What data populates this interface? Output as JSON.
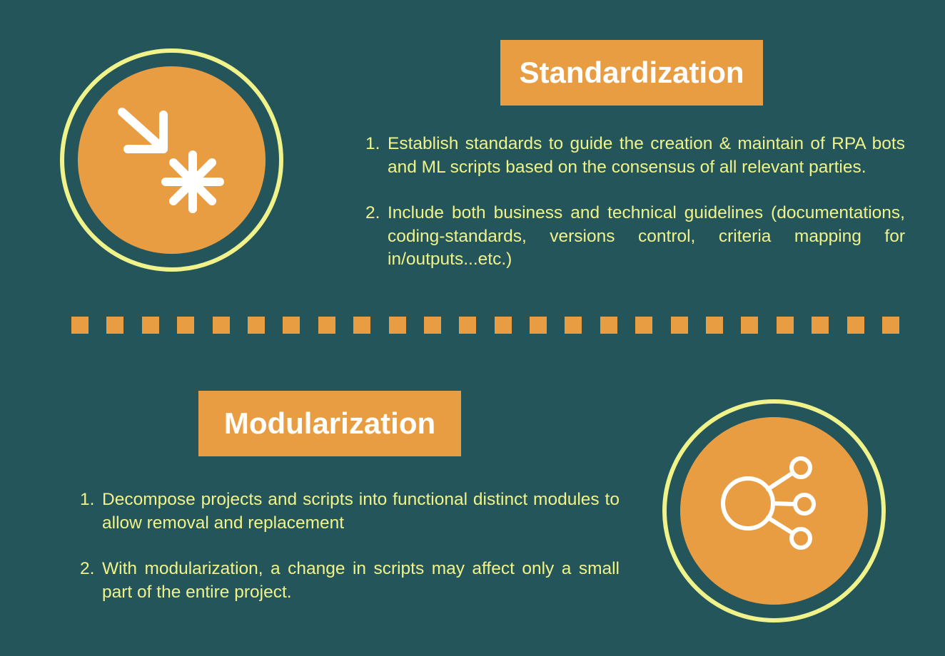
{
  "sections": [
    {
      "title": "Standardization",
      "icon": "converge-arrow-asterisk-icon",
      "points": [
        {
          "number": "1.",
          "text": "Establish standards to guide the creation & maintain of RPA bots and ML scripts based on the consensus of all relevant parties."
        },
        {
          "number": "2.",
          "text": "Include both business and technical guidelines (documentations, coding-standards, versions control, criteria mapping for in/outputs...etc.)"
        }
      ]
    },
    {
      "title": "Modularization",
      "icon": "network-nodes-icon",
      "points": [
        {
          "number": "1.",
          "text": "Decompose projects and scripts into functional distinct modules to allow removal and replacement"
        },
        {
          "number": "2.",
          "text": "With modularization, a change in scripts may affect only a small part of the entire project."
        }
      ]
    }
  ],
  "colors": {
    "background": "#24555a",
    "accent": "#e99d43",
    "text": "#eff38a",
    "heading_text": "#ffffff",
    "ring": "#eff38a"
  }
}
